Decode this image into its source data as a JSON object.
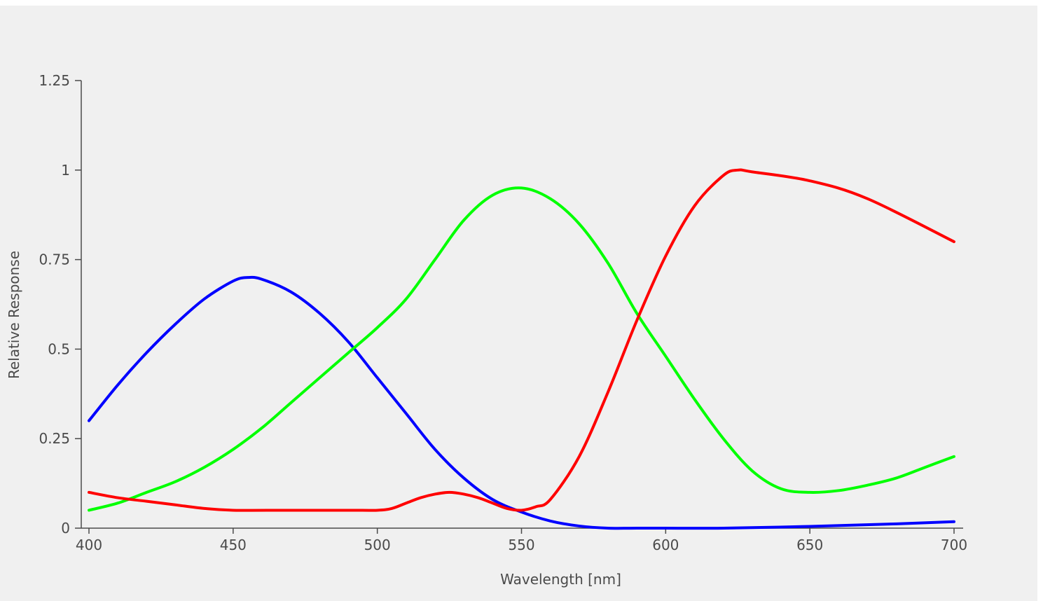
{
  "chart_data": {
    "type": "line",
    "title": "",
    "xlabel": "Wavelength [nm]",
    "ylabel": "Relative Response",
    "xlim": [
      400,
      700
    ],
    "ylim": [
      0,
      1.25
    ],
    "x_ticks": [
      400,
      450,
      500,
      550,
      600,
      650,
      700
    ],
    "x_tick_labels": [
      "400",
      "450",
      "500",
      "550",
      "600",
      "650",
      "700"
    ],
    "y_ticks": [
      0,
      0.25,
      0.5,
      0.75,
      1,
      1.25
    ],
    "y_tick_labels": [
      "0",
      "0.25",
      "0.5",
      "0.75",
      "1",
      "1.25"
    ],
    "grid": false,
    "legend": "none",
    "series": [
      {
        "color": "#0000ff",
        "x": [
          400,
          410,
          420,
          430,
          440,
          450,
          455,
          460,
          470,
          480,
          490,
          500,
          510,
          520,
          530,
          540,
          550,
          560,
          570,
          580,
          590,
          600,
          620,
          650,
          680,
          700
        ],
        "y": [
          0.3,
          0.4,
          0.49,
          0.57,
          0.64,
          0.69,
          0.7,
          0.695,
          0.66,
          0.6,
          0.52,
          0.42,
          0.32,
          0.22,
          0.14,
          0.08,
          0.045,
          0.02,
          0.006,
          0.0,
          0.0,
          0.0,
          0.0,
          0.005,
          0.012,
          0.018
        ]
      },
      {
        "color": "#00ff00",
        "x": [
          400,
          410,
          420,
          430,
          440,
          450,
          460,
          470,
          480,
          490,
          500,
          510,
          520,
          530,
          540,
          550,
          560,
          570,
          580,
          590,
          600,
          610,
          620,
          630,
          640,
          650,
          660,
          670,
          680,
          690,
          700
        ],
        "y": [
          0.05,
          0.07,
          0.1,
          0.13,
          0.17,
          0.22,
          0.28,
          0.35,
          0.42,
          0.49,
          0.56,
          0.64,
          0.75,
          0.86,
          0.93,
          0.95,
          0.92,
          0.85,
          0.74,
          0.6,
          0.48,
          0.36,
          0.25,
          0.16,
          0.11,
          0.1,
          0.105,
          0.12,
          0.14,
          0.17,
          0.2
        ]
      },
      {
        "color": "#ff0000",
        "x": [
          400,
          410,
          420,
          430,
          440,
          450,
          470,
          490,
          500,
          505,
          510,
          515,
          520,
          525,
          530,
          535,
          540,
          545,
          550,
          555,
          560,
          570,
          580,
          590,
          600,
          610,
          620,
          625,
          630,
          650,
          670,
          700
        ],
        "y": [
          0.1,
          0.085,
          0.075,
          0.065,
          0.055,
          0.05,
          0.05,
          0.05,
          0.05,
          0.055,
          0.07,
          0.085,
          0.095,
          0.1,
          0.095,
          0.085,
          0.07,
          0.055,
          0.05,
          0.06,
          0.08,
          0.2,
          0.38,
          0.58,
          0.76,
          0.9,
          0.985,
          1.0,
          0.995,
          0.97,
          0.92,
          0.8
        ]
      }
    ]
  }
}
